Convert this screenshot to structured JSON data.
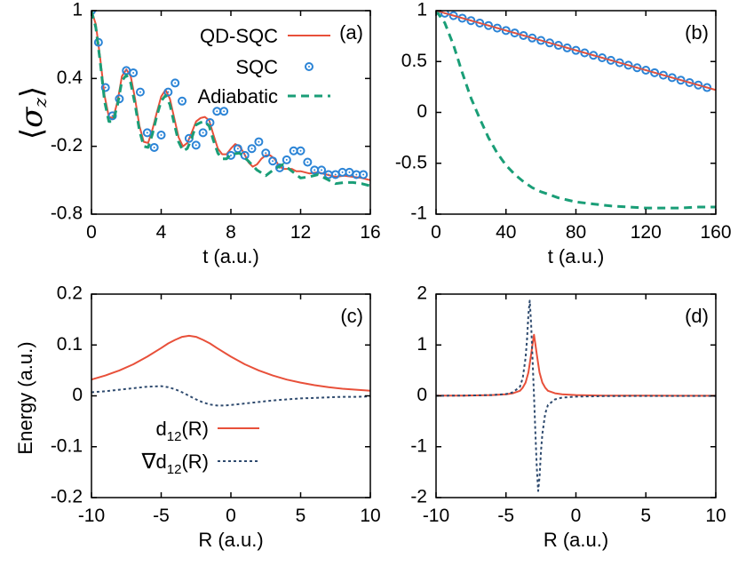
{
  "colors": {
    "qd_sqc": "#e8503a",
    "sqc": "#2b84d6",
    "adiabatic": "#1a9e77",
    "d12": "#e8503a",
    "grad_d12": "#2e4a6e",
    "axis": "#000000"
  },
  "chart_data": [
    {
      "id": "a",
      "type": "line",
      "label": "(a)",
      "ylabel": "⟨σz⟩",
      "xlabel": "t (a.u.)",
      "xlim": [
        0,
        16
      ],
      "ylim": [
        -0.8,
        1
      ],
      "xticks": [
        0,
        4,
        8,
        12,
        16
      ],
      "yticks": [
        1,
        0.4,
        -0.2,
        -0.8
      ],
      "xtick_labels": [
        "0",
        "4",
        "8",
        "12",
        "16"
      ],
      "ytick_labels": [
        "1",
        "0.4",
        "-0.2",
        "-0.8"
      ],
      "legend": {
        "position": "top-right",
        "entries": [
          {
            "name": "QD-SQC",
            "style": "solid-line"
          },
          {
            "name": "SQC",
            "style": "circle-marker"
          },
          {
            "name": "Adiabatic",
            "style": "dashed-line"
          }
        ]
      },
      "series": [
        {
          "name": "QD-SQC",
          "style": "solid",
          "x": [
            0,
            0.25,
            0.5,
            0.75,
            1.0,
            1.25,
            1.5,
            1.75,
            2.0,
            2.25,
            2.5,
            2.75,
            3.0,
            3.25,
            3.5,
            3.75,
            4.0,
            4.25,
            4.5,
            4.75,
            5.0,
            5.25,
            5.5,
            5.75,
            6.0,
            6.25,
            6.5,
            6.75,
            7.0,
            7.25,
            7.5,
            7.75,
            8.0,
            8.25,
            8.5,
            8.75,
            9.0,
            9.25,
            9.5,
            9.75,
            10.0,
            10.25,
            10.5,
            10.75,
            11.0,
            11.25,
            11.5,
            11.75,
            12.0,
            12.5,
            13.0,
            13.5,
            14.0,
            14.5,
            15.0,
            15.5,
            16.0
          ],
          "y": [
            1,
            0.88,
            0.58,
            0.25,
            0.06,
            0.05,
            0.2,
            0.42,
            0.48,
            0.42,
            0.22,
            -0.02,
            -0.16,
            -0.17,
            -0.05,
            0.1,
            0.24,
            0.3,
            0.22,
            0.05,
            -0.12,
            -0.2,
            -0.17,
            -0.08,
            0.02,
            0.05,
            0.06,
            0.03,
            -0.1,
            -0.22,
            -0.27,
            -0.27,
            -0.22,
            -0.18,
            -0.2,
            -0.26,
            -0.34,
            -0.38,
            -0.36,
            -0.31,
            -0.28,
            -0.28,
            -0.31,
            -0.37,
            -0.4,
            -0.4,
            -0.4,
            -0.42,
            -0.42,
            -0.44,
            -0.43,
            -0.45,
            -0.47,
            -0.46,
            -0.47,
            -0.48,
            -0.5
          ]
        },
        {
          "name": "SQC",
          "style": "markers",
          "x": [
            0,
            0.4,
            0.8,
            1.2,
            1.6,
            2.0,
            2.4,
            2.8,
            3.2,
            3.6,
            4.0,
            4.4,
            4.8,
            5.2,
            5.6,
            6.0,
            6.4,
            6.8,
            7.2,
            7.6,
            8.0,
            8.4,
            8.8,
            9.2,
            9.6,
            10.0,
            10.4,
            10.8,
            11.2,
            11.6,
            12.0,
            12.4,
            12.8,
            13.2,
            13.6,
            14.0,
            14.4,
            14.8,
            15.2,
            15.6
          ],
          "y": [
            1,
            0.72,
            0.32,
            0.07,
            0.22,
            0.47,
            0.45,
            0.28,
            -0.08,
            -0.21,
            -0.1,
            0.28,
            0.36,
            0.2,
            -0.13,
            -0.19,
            -0.08,
            0.01,
            0.11,
            0.11,
            -0.28,
            -0.22,
            -0.28,
            -0.22,
            -0.16,
            -0.26,
            -0.33,
            -0.39,
            -0.32,
            -0.24,
            -0.24,
            -0.34,
            -0.41,
            -0.41,
            -0.45,
            -0.45,
            -0.43,
            -0.43,
            -0.45,
            -0.45
          ]
        },
        {
          "name": "Adiabatic",
          "style": "dashed",
          "x": [
            0,
            0.25,
            0.5,
            0.75,
            1.0,
            1.25,
            1.5,
            1.75,
            2.0,
            2.25,
            2.5,
            2.75,
            3.0,
            3.25,
            3.5,
            3.75,
            4.0,
            4.25,
            4.5,
            4.75,
            5.0,
            5.25,
            5.5,
            5.75,
            6.0,
            6.25,
            6.5,
            6.75,
            7.0,
            7.25,
            7.5,
            7.75,
            8.0,
            8.5,
            9.0,
            9.5,
            10.0,
            10.5,
            11.0,
            11.5,
            12.0,
            12.5,
            13.0,
            13.5,
            14.0,
            14.5,
            15.0,
            15.5,
            16.0
          ],
          "y": [
            1,
            0.85,
            0.55,
            0.2,
            0.02,
            0.02,
            0.17,
            0.38,
            0.43,
            0.36,
            0.17,
            -0.06,
            -0.2,
            -0.21,
            -0.09,
            0.07,
            0.2,
            0.25,
            0.17,
            0,
            -0.16,
            -0.24,
            -0.22,
            -0.13,
            -0.01,
            0.01,
            0.02,
            -0.02,
            -0.15,
            -0.26,
            -0.31,
            -0.31,
            -0.27,
            -0.26,
            -0.33,
            -0.41,
            -0.46,
            -0.4,
            -0.36,
            -0.42,
            -0.48,
            -0.47,
            -0.45,
            -0.49,
            -0.53,
            -0.52,
            -0.52,
            -0.53,
            -0.55
          ]
        }
      ]
    },
    {
      "id": "b",
      "type": "line",
      "label": "(b)",
      "xlabel": "t (a.u.)",
      "xlim": [
        0,
        160
      ],
      "ylim": [
        -1,
        1
      ],
      "xticks": [
        0,
        40,
        80,
        120,
        160
      ],
      "yticks": [
        1,
        0.5,
        0,
        -0.5,
        -1
      ],
      "xtick_labels": [
        "0",
        "40",
        "80",
        "120",
        "160"
      ],
      "ytick_labels": [
        "1",
        "0.5",
        "0",
        "-0.5",
        "-1"
      ],
      "series": [
        {
          "name": "QD-SQC",
          "style": "solid",
          "x": [
            0,
            160
          ],
          "y": [
            1,
            0.22
          ]
        },
        {
          "name": "SQC",
          "style": "markers",
          "x": [
            0,
            5,
            10,
            15,
            20,
            25,
            30,
            35,
            40,
            45,
            50,
            55,
            60,
            65,
            70,
            75,
            80,
            85,
            90,
            95,
            100,
            105,
            110,
            115,
            120,
            125,
            130,
            135,
            140,
            145,
            150,
            155
          ],
          "y": [
            1,
            0.975,
            0.951,
            0.926,
            0.902,
            0.878,
            0.854,
            0.829,
            0.805,
            0.781,
            0.756,
            0.731,
            0.707,
            0.683,
            0.659,
            0.634,
            0.61,
            0.585,
            0.561,
            0.537,
            0.512,
            0.488,
            0.464,
            0.439,
            0.415,
            0.39,
            0.366,
            0.342,
            0.317,
            0.293,
            0.269,
            0.244
          ]
        },
        {
          "name": "Adiabatic",
          "style": "dashed",
          "x": [
            0,
            5,
            10,
            15,
            20,
            25,
            30,
            35,
            40,
            45,
            50,
            55,
            60,
            65,
            70,
            75,
            80,
            90,
            100,
            110,
            120,
            130,
            140,
            150,
            160
          ],
          "y": [
            1,
            0.88,
            0.66,
            0.39,
            0.14,
            -0.06,
            -0.25,
            -0.4,
            -0.52,
            -0.61,
            -0.68,
            -0.74,
            -0.78,
            -0.81,
            -0.84,
            -0.86,
            -0.88,
            -0.9,
            -0.92,
            -0.93,
            -0.94,
            -0.94,
            -0.94,
            -0.93,
            -0.93
          ]
        }
      ]
    },
    {
      "id": "c",
      "type": "line",
      "label": "(c)",
      "ylabel": "Energy (a.u.)",
      "xlabel": "R (a.u.)",
      "xlim": [
        -10,
        10
      ],
      "ylim": [
        -0.2,
        0.2
      ],
      "xticks": [
        -10,
        -5,
        0,
        5,
        10
      ],
      "yticks": [
        0.2,
        0.1,
        0,
        -0.1,
        -0.2
      ],
      "xtick_labels": [
        "-10",
        "-5",
        "0",
        "5",
        "10"
      ],
      "ytick_labels": [
        "0.2",
        "0.1",
        "0",
        "-0.1",
        "-0.2"
      ],
      "legend": {
        "position": "bottom-left",
        "entries": [
          {
            "name": "d12(R)",
            "main": "d",
            "sub": "12",
            "rest": "(R)",
            "prefix": "",
            "style": "solid-line"
          },
          {
            "name": "∇d12(R)",
            "main": "d",
            "sub": "12",
            "rest": "(R)",
            "prefix": "∇",
            "style": "dotted-line"
          }
        ]
      },
      "series": [
        {
          "name": "d12(R)",
          "style": "solid",
          "x": [
            -10,
            -9,
            -8,
            -7,
            -6,
            -5,
            -4.5,
            -4,
            -3.5,
            -3,
            -2.5,
            -2,
            -1.5,
            -1,
            0,
            1,
            2,
            3,
            4,
            5,
            6,
            7,
            8,
            9,
            10
          ],
          "y": [
            0.032,
            0.04,
            0.05,
            0.062,
            0.077,
            0.094,
            0.103,
            0.11,
            0.116,
            0.118,
            0.116,
            0.11,
            0.103,
            0.094,
            0.077,
            0.062,
            0.05,
            0.04,
            0.032,
            0.026,
            0.021,
            0.017,
            0.014,
            0.012,
            0.01
          ]
        },
        {
          "name": "∇d12(R)",
          "style": "dotted",
          "x": [
            -10,
            -9,
            -8,
            -7,
            -6,
            -5,
            -4.5,
            -4,
            -3.5,
            -3,
            -2.5,
            -2,
            -1.5,
            -1,
            -0.5,
            0,
            1,
            2,
            3,
            4,
            5,
            6,
            7,
            8,
            9,
            10
          ],
          "y": [
            0.007,
            0.009,
            0.012,
            0.015,
            0.018,
            0.019,
            0.017,
            0.013,
            0.007,
            0.0,
            -0.007,
            -0.013,
            -0.017,
            -0.019,
            -0.019,
            -0.018,
            -0.015,
            -0.012,
            -0.009,
            -0.007,
            -0.005,
            -0.004,
            -0.003,
            -0.002,
            -0.002,
            -0.001
          ]
        }
      ]
    },
    {
      "id": "d",
      "type": "line",
      "label": "(d)",
      "xlabel": "R (a.u.)",
      "xlim": [
        -10,
        10
      ],
      "ylim": [
        -2,
        2
      ],
      "xticks": [
        -10,
        -5,
        0,
        5,
        10
      ],
      "yticks": [
        2,
        1,
        0,
        -1,
        -2
      ],
      "xtick_labels": [
        "-10",
        "-5",
        "0",
        "5",
        "10"
      ],
      "ytick_labels": [
        "2",
        "1",
        "0",
        "-1",
        "-2"
      ],
      "series": [
        {
          "name": "d12(R)",
          "style": "solid",
          "x": [
            -10,
            -8,
            -6,
            -5,
            -4.5,
            -4,
            -3.8,
            -3.6,
            -3.4,
            -3.2,
            -3.1,
            -3.0,
            -2.9,
            -2.8,
            -2.6,
            -2.4,
            -2.2,
            -2,
            -1.5,
            -1,
            0,
            2,
            5,
            10
          ],
          "y": [
            0.003,
            0.006,
            0.015,
            0.03,
            0.05,
            0.1,
            0.16,
            0.26,
            0.46,
            0.82,
            1.02,
            1.2,
            1.02,
            0.82,
            0.46,
            0.26,
            0.16,
            0.1,
            0.05,
            0.03,
            0.015,
            0.006,
            0.003,
            0.001
          ]
        },
        {
          "name": "∇d12(R)",
          "style": "dotted",
          "x": [
            -10,
            -8,
            -6,
            -5,
            -4.5,
            -4,
            -3.8,
            -3.6,
            -3.5,
            -3.4,
            -3.3,
            -3.2,
            -3.1,
            -3.0,
            -2.9,
            -2.8,
            -2.7,
            -2.6,
            -2.5,
            -2.4,
            -2.2,
            -2,
            -1.5,
            -1,
            0,
            2,
            5,
            10
          ],
          "y": [
            0.002,
            0.005,
            0.015,
            0.035,
            0.07,
            0.18,
            0.35,
            0.75,
            1.1,
            1.6,
            1.87,
            1.4,
            0.7,
            0.0,
            -0.7,
            -1.4,
            -1.87,
            -1.6,
            -1.1,
            -0.75,
            -0.35,
            -0.18,
            -0.07,
            -0.035,
            -0.015,
            -0.005,
            -0.002,
            -0.001
          ]
        }
      ]
    }
  ]
}
